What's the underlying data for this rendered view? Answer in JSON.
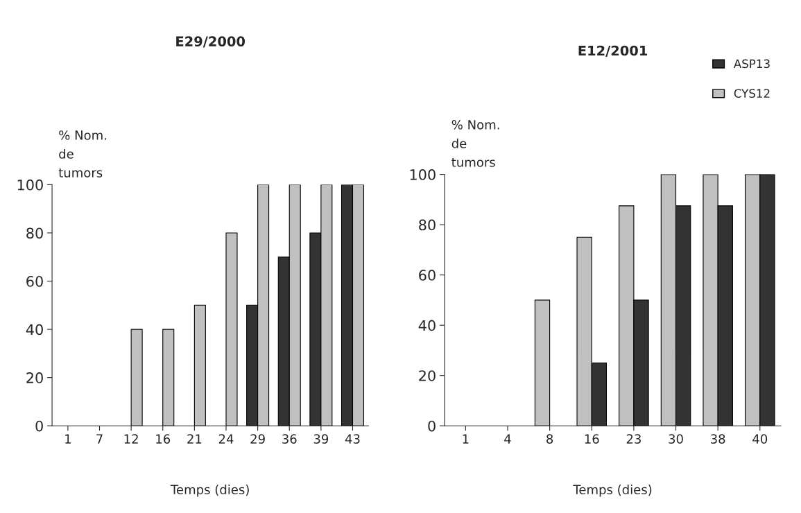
{
  "chart_data": [
    {
      "type": "bar",
      "title": "E29/2000",
      "xlabel": "Temps (dies)",
      "ylabel": "% Nom.\nde\ntumors",
      "categories": [
        "1",
        "7",
        "12",
        "16",
        "21",
        "24",
        "29",
        "36",
        "39",
        "43"
      ],
      "series": [
        {
          "color": "#333333",
          "values": [
            0,
            0,
            0,
            0,
            0,
            0,
            50,
            70,
            80,
            100
          ]
        },
        {
          "color": "#c0c0c0",
          "values": [
            0,
            0,
            40,
            40,
            50,
            80,
            100,
            100,
            100,
            100
          ]
        }
      ],
      "ylim": [
        0,
        100
      ],
      "yticks": [
        0,
        20,
        40,
        60,
        80,
        100
      ],
      "grid": false,
      "legend": false
    },
    {
      "type": "bar",
      "title": "E12/2001",
      "xlabel": "Temps (dies)",
      "ylabel": "% Nom.\nde\ntumors",
      "categories": [
        "1",
        "4",
        "8",
        "16",
        "23",
        "30",
        "38",
        "40"
      ],
      "series": [
        {
          "name": "CYS12",
          "color": "#c0c0c0",
          "values": [
            0,
            0,
            50,
            75,
            87.5,
            100,
            100,
            100
          ]
        },
        {
          "name": "ASP13",
          "color": "#333333",
          "values": [
            0,
            0,
            0,
            25,
            50,
            87.5,
            87.5,
            100
          ]
        }
      ],
      "ylim": [
        0,
        100
      ],
      "yticks": [
        0,
        20,
        40,
        60,
        80,
        100
      ],
      "grid": false,
      "legend": "top right"
    }
  ]
}
